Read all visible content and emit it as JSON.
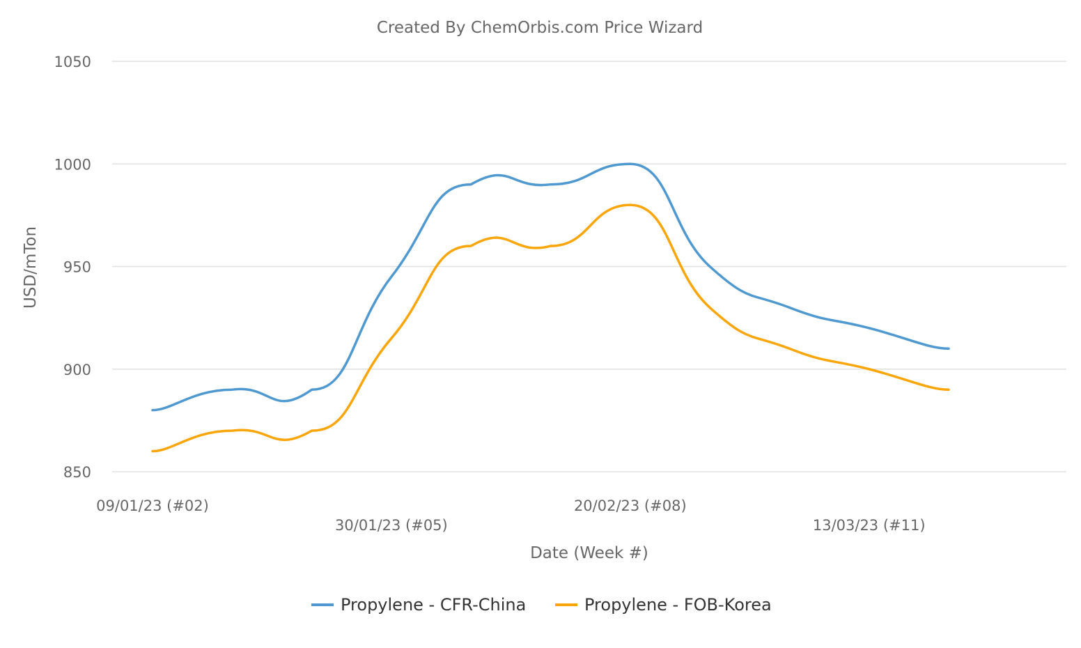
{
  "chart_data": {
    "type": "line",
    "title": "Created By ChemOrbis.com Price Wizard",
    "xlabel": "Date (Week #)",
    "ylabel": "USD/mTon",
    "ylim": [
      850,
      1050
    ],
    "yticks": [
      "850",
      "900",
      "950",
      "1000",
      "1050"
    ],
    "grid": true,
    "legend_position": "bottom-center",
    "x": [
      "2023-01-09",
      "2023-01-16",
      "2023-01-23",
      "2023-01-30",
      "2023-02-06",
      "2023-02-13",
      "2023-02-20",
      "2023-02-27",
      "2023-03-06",
      "2023-03-13",
      "2023-03-20"
    ],
    "x_tick_labels": [
      "09/01/23 (#02)",
      "30/01/23 (#05)",
      "20/02/23 (#08)",
      "13/03/23 (#11)"
    ],
    "x_tick_indices": [
      0,
      3,
      6,
      9
    ],
    "series": [
      {
        "name": "Propylene - CFR-China",
        "color": "#4f98d0",
        "values": [
          880,
          890,
          890,
          945,
          990,
          990,
          1000,
          950,
          930,
          920,
          910
        ]
      },
      {
        "name": "Propylene - FOB-Korea",
        "color": "#f8a60c",
        "values": [
          860,
          870,
          870,
          915,
          960,
          960,
          980,
          930,
          910,
          900,
          890
        ]
      }
    ]
  }
}
